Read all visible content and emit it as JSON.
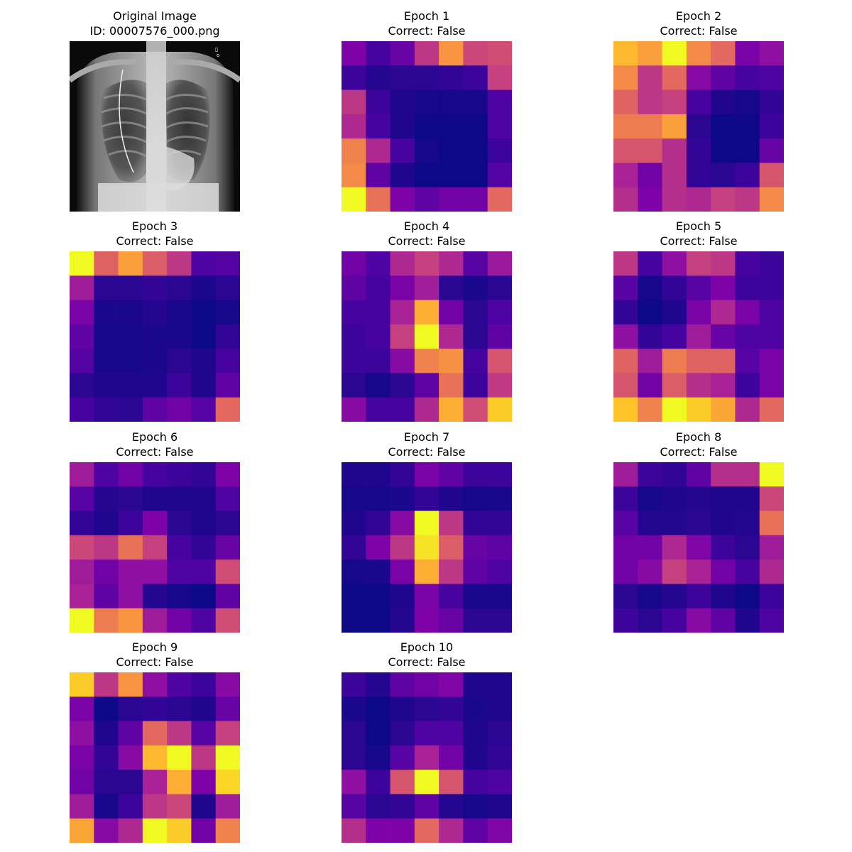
{
  "original": {
    "title_line1": "Original Image",
    "title_line2": "ID: 00007576_000.png"
  },
  "colormap": "plasma",
  "value_scale": "0 = darkest (#0d0887), 1 = brightest (#f0f921)",
  "chart_data": {
    "type": "heatmap",
    "grid_rows": 7,
    "grid_cols": 7,
    "panels": [
      {
        "title": "Epoch 1",
        "subtitle": "Correct: False",
        "values": [
          [
            0.25,
            0.12,
            0.2,
            0.45,
            0.75,
            0.5,
            0.52
          ],
          [
            0.1,
            0.05,
            0.06,
            0.06,
            0.08,
            0.1,
            0.48
          ],
          [
            0.45,
            0.1,
            0.04,
            0.02,
            0.02,
            0.02,
            0.14
          ],
          [
            0.4,
            0.12,
            0.04,
            0.0,
            0.0,
            0.0,
            0.14
          ],
          [
            0.7,
            0.4,
            0.12,
            0.02,
            0.0,
            0.0,
            0.1
          ],
          [
            0.72,
            0.18,
            0.04,
            0.0,
            0.0,
            0.0,
            0.15
          ],
          [
            1.0,
            0.65,
            0.25,
            0.18,
            0.22,
            0.22,
            0.62
          ]
        ]
      },
      {
        "title": "Epoch 2",
        "subtitle": "Correct: False",
        "values": [
          [
            0.85,
            0.78,
            1.0,
            0.72,
            0.62,
            0.24,
            0.3
          ],
          [
            0.72,
            0.45,
            0.62,
            0.28,
            0.18,
            0.12,
            0.14
          ],
          [
            0.6,
            0.45,
            0.48,
            0.12,
            0.04,
            0.02,
            0.08
          ],
          [
            0.68,
            0.68,
            0.78,
            0.06,
            0.0,
            0.0,
            0.1
          ],
          [
            0.55,
            0.55,
            0.42,
            0.08,
            0.0,
            0.0,
            0.2
          ],
          [
            0.38,
            0.22,
            0.42,
            0.08,
            0.06,
            0.1,
            0.55
          ],
          [
            0.42,
            0.25,
            0.42,
            0.4,
            0.48,
            0.45,
            0.72
          ]
        ]
      },
      {
        "title": "Epoch 3",
        "subtitle": "Correct: False",
        "values": [
          [
            1.0,
            0.6,
            0.78,
            0.58,
            0.45,
            0.14,
            0.15
          ],
          [
            0.35,
            0.06,
            0.06,
            0.08,
            0.06,
            0.03,
            0.06
          ],
          [
            0.24,
            0.03,
            0.03,
            0.05,
            0.03,
            0.0,
            0.02
          ],
          [
            0.18,
            0.02,
            0.02,
            0.03,
            0.03,
            0.0,
            0.08
          ],
          [
            0.15,
            0.02,
            0.02,
            0.03,
            0.06,
            0.04,
            0.12
          ],
          [
            0.06,
            0.04,
            0.04,
            0.04,
            0.1,
            0.04,
            0.18
          ],
          [
            0.12,
            0.08,
            0.06,
            0.18,
            0.22,
            0.16,
            0.62
          ]
        ]
      },
      {
        "title": "Epoch 4",
        "subtitle": "Correct: False",
        "values": [
          [
            0.22,
            0.14,
            0.4,
            0.48,
            0.4,
            0.16,
            0.34
          ],
          [
            0.18,
            0.12,
            0.24,
            0.36,
            0.06,
            0.03,
            0.06
          ],
          [
            0.12,
            0.12,
            0.38,
            0.82,
            0.22,
            0.06,
            0.14
          ],
          [
            0.1,
            0.12,
            0.48,
            1.0,
            0.4,
            0.06,
            0.18
          ],
          [
            0.1,
            0.1,
            0.28,
            0.7,
            0.74,
            0.12,
            0.55
          ],
          [
            0.06,
            0.02,
            0.06,
            0.18,
            0.65,
            0.1,
            0.46
          ],
          [
            0.28,
            0.12,
            0.12,
            0.4,
            0.82,
            0.52,
            0.9
          ]
        ]
      },
      {
        "title": "Epoch 5",
        "subtitle": "Correct: False",
        "values": [
          [
            0.45,
            0.12,
            0.3,
            0.48,
            0.45,
            0.12,
            0.1
          ],
          [
            0.16,
            0.02,
            0.08,
            0.16,
            0.25,
            0.1,
            0.1
          ],
          [
            0.08,
            0.0,
            0.04,
            0.24,
            0.4,
            0.24,
            0.14
          ],
          [
            0.3,
            0.08,
            0.12,
            0.35,
            0.2,
            0.14,
            0.14
          ],
          [
            0.6,
            0.35,
            0.68,
            0.6,
            0.6,
            0.16,
            0.24
          ],
          [
            0.55,
            0.22,
            0.58,
            0.42,
            0.38,
            0.1,
            0.24
          ],
          [
            0.88,
            0.7,
            1.0,
            0.9,
            0.8,
            0.4,
            0.62
          ]
        ]
      },
      {
        "title": "Epoch 6",
        "subtitle": "Correct: False",
        "values": [
          [
            0.35,
            0.14,
            0.22,
            0.12,
            0.1,
            0.08,
            0.25
          ],
          [
            0.16,
            0.05,
            0.06,
            0.04,
            0.04,
            0.04,
            0.14
          ],
          [
            0.08,
            0.04,
            0.1,
            0.25,
            0.06,
            0.04,
            0.06
          ],
          [
            0.5,
            0.45,
            0.65,
            0.48,
            0.12,
            0.08,
            0.2
          ],
          [
            0.35,
            0.22,
            0.3,
            0.3,
            0.14,
            0.14,
            0.52
          ],
          [
            0.38,
            0.18,
            0.3,
            0.05,
            0.02,
            0.0,
            0.18
          ],
          [
            1.0,
            0.68,
            0.75,
            0.35,
            0.22,
            0.14,
            0.52
          ]
        ]
      },
      {
        "title": "Epoch 7",
        "subtitle": "Correct: False",
        "values": [
          [
            0.04,
            0.04,
            0.08,
            0.24,
            0.18,
            0.1,
            0.1
          ],
          [
            0.02,
            0.02,
            0.03,
            0.08,
            0.04,
            0.02,
            0.03
          ],
          [
            0.04,
            0.08,
            0.28,
            1.0,
            0.45,
            0.08,
            0.08
          ],
          [
            0.08,
            0.25,
            0.45,
            0.95,
            0.58,
            0.2,
            0.18
          ],
          [
            0.02,
            0.03,
            0.24,
            0.82,
            0.45,
            0.18,
            0.14
          ],
          [
            0.0,
            0.0,
            0.04,
            0.24,
            0.12,
            0.03,
            0.03
          ],
          [
            0.0,
            0.0,
            0.05,
            0.25,
            0.2,
            0.06,
            0.06
          ]
        ]
      },
      {
        "title": "Epoch 8",
        "subtitle": "Correct: False",
        "values": [
          [
            0.35,
            0.1,
            0.08,
            0.18,
            0.42,
            0.42,
            1.0
          ],
          [
            0.1,
            0.02,
            0.04,
            0.05,
            0.04,
            0.04,
            0.5
          ],
          [
            0.16,
            0.05,
            0.05,
            0.06,
            0.04,
            0.05,
            0.65
          ],
          [
            0.22,
            0.22,
            0.4,
            0.26,
            0.1,
            0.06,
            0.35
          ],
          [
            0.22,
            0.28,
            0.48,
            0.38,
            0.22,
            0.12,
            0.4
          ],
          [
            0.06,
            0.02,
            0.05,
            0.1,
            0.04,
            0.0,
            0.1
          ],
          [
            0.1,
            0.06,
            0.12,
            0.28,
            0.18,
            0.04,
            0.14
          ]
        ]
      },
      {
        "title": "Epoch 9",
        "subtitle": "Correct: False",
        "values": [
          [
            0.9,
            0.45,
            0.75,
            0.3,
            0.14,
            0.1,
            0.28
          ],
          [
            0.24,
            0.0,
            0.06,
            0.08,
            0.06,
            0.04,
            0.2
          ],
          [
            0.3,
            0.04,
            0.18,
            0.62,
            0.45,
            0.16,
            0.48
          ],
          [
            0.24,
            0.08,
            0.28,
            0.85,
            1.0,
            0.45,
            1.0
          ],
          [
            0.22,
            0.06,
            0.06,
            0.38,
            0.82,
            0.25,
            0.92
          ],
          [
            0.35,
            0.02,
            0.1,
            0.45,
            0.5,
            0.04,
            0.35
          ],
          [
            0.8,
            0.28,
            0.4,
            1.0,
            0.9,
            0.22,
            0.7
          ]
        ]
      },
      {
        "title": "Epoch 10",
        "subtitle": "Correct: False",
        "values": [
          [
            0.1,
            0.05,
            0.18,
            0.22,
            0.26,
            0.04,
            0.04
          ],
          [
            0.03,
            0.0,
            0.04,
            0.06,
            0.08,
            0.03,
            0.04
          ],
          [
            0.06,
            0.0,
            0.06,
            0.14,
            0.14,
            0.04,
            0.06
          ],
          [
            0.06,
            0.02,
            0.16,
            0.38,
            0.22,
            0.04,
            0.08
          ],
          [
            0.3,
            0.1,
            0.55,
            1.0,
            0.55,
            0.12,
            0.14
          ],
          [
            0.16,
            0.06,
            0.08,
            0.18,
            0.05,
            0.02,
            0.04
          ],
          [
            0.42,
            0.25,
            0.25,
            0.62,
            0.4,
            0.18,
            0.26
          ]
        ]
      }
    ]
  }
}
